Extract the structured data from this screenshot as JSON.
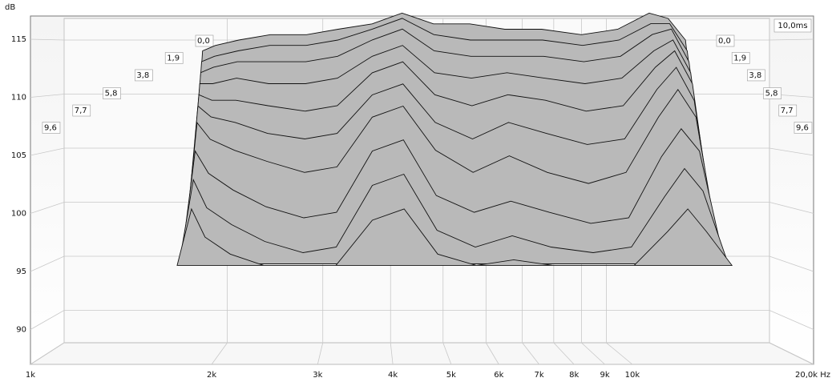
{
  "chart_data": {
    "type": "waterfall",
    "y_label": "dB",
    "time_span": {
      "value": 10,
      "label": "10,0ms"
    },
    "xscale": "log",
    "xlim": [
      1000,
      20000
    ],
    "xticks": [
      {
        "value": 1000,
        "label": "1k"
      },
      {
        "value": 2000,
        "label": "2k"
      },
      {
        "value": 3000,
        "label": "3k"
      },
      {
        "value": 4000,
        "label": "4k"
      },
      {
        "value": 5000,
        "label": "5k"
      },
      {
        "value": 6000,
        "label": "6k"
      },
      {
        "value": 7000,
        "label": "7k"
      },
      {
        "value": 8000,
        "label": "8k"
      },
      {
        "value": 9000,
        "label": "9k"
      },
      {
        "value": 10000,
        "label": "10k"
      },
      {
        "value": 20000,
        "label": "20,0k Hz"
      }
    ],
    "ylim": [
      87,
      117
    ],
    "yticks": [
      90,
      95,
      100,
      105,
      110,
      115
    ],
    "zlim": [
      0,
      10
    ],
    "zticks": [
      {
        "value": 0,
        "label": "0,0"
      },
      {
        "value": 1.9,
        "label": "1,9"
      },
      {
        "value": 3.8,
        "label": "3,8"
      },
      {
        "value": 5.8,
        "label": "5,8"
      },
      {
        "value": 7.7,
        "label": "7,7"
      },
      {
        "value": 9.6,
        "label": "9,6"
      }
    ],
    "grid": true,
    "color": "#b9b9b9",
    "frequencies": [
      1700,
      1800,
      1900,
      2100,
      2400,
      2800,
      3200,
      3700,
      4200,
      4800,
      5600,
      6500,
      7600,
      9000,
      10500,
      12000,
      13000,
      14000,
      15500
    ],
    "slices": [
      {
        "time": 0,
        "values": [
          95,
          114,
          114.5,
          115,
          115.5,
          115.5,
          116,
          116.5,
          117.5,
          116.5,
          116.5,
          116,
          116,
          115.5,
          116,
          117.5,
          117,
          115,
          95
        ]
      },
      {
        "time": 0.5,
        "values": [
          95,
          113,
          113.5,
          114,
          114.5,
          114.5,
          115,
          116,
          117,
          115.5,
          115,
          115,
          115,
          114.5,
          115,
          116.5,
          116.5,
          114,
          95
        ]
      },
      {
        "time": 1,
        "values": [
          95,
          112,
          112.5,
          113,
          113,
          113,
          113.5,
          115,
          116,
          114,
          113.5,
          113.5,
          113.5,
          113,
          113.5,
          115.5,
          116,
          113,
          95
        ]
      },
      {
        "time": 1.5,
        "values": [
          95,
          111,
          111,
          111.5,
          111,
          111,
          111.5,
          113.5,
          114.5,
          112,
          111.5,
          112,
          111.5,
          111,
          111.5,
          114,
          115,
          112,
          95
        ]
      },
      {
        "time": 2,
        "values": [
          95,
          110,
          109.5,
          109.5,
          109,
          108.5,
          109,
          112,
          113,
          110,
          109,
          110,
          109.5,
          108.5,
          109,
          112.5,
          114,
          111,
          95
        ]
      },
      {
        "time": 2.5,
        "values": [
          95,
          109,
          108,
          107.5,
          106.5,
          106,
          106.5,
          110,
          111,
          107.5,
          106,
          107.5,
          106.5,
          105.5,
          106,
          110.5,
          112.5,
          109.5,
          95
        ]
      },
      {
        "time": 3,
        "values": [
          95,
          107.5,
          106,
          105,
          104,
          103,
          103.5,
          108,
          109,
          105,
          103,
          104.5,
          103,
          102,
          103,
          108,
          110.5,
          108,
          95
        ]
      },
      {
        "time": 4,
        "values": [
          95,
          105,
          103,
          101.5,
          100,
          99,
          99.5,
          105,
          106,
          101,
          99.5,
          100.5,
          99.5,
          98.5,
          99,
          104.5,
          107,
          105,
          95
        ]
      },
      {
        "time": 5,
        "values": [
          95,
          102.5,
          100,
          98.5,
          97,
          96,
          96.5,
          102,
          103,
          98,
          96.5,
          97.5,
          96.5,
          96,
          96.5,
          101,
          103.5,
          101.5,
          95
        ]
      },
      {
        "time": 6,
        "values": [
          95,
          100,
          97.5,
          96,
          95,
          95,
          95,
          99,
          100,
          96,
          95,
          95.5,
          95,
          95,
          95,
          98,
          100,
          98,
          95
        ]
      }
    ]
  }
}
